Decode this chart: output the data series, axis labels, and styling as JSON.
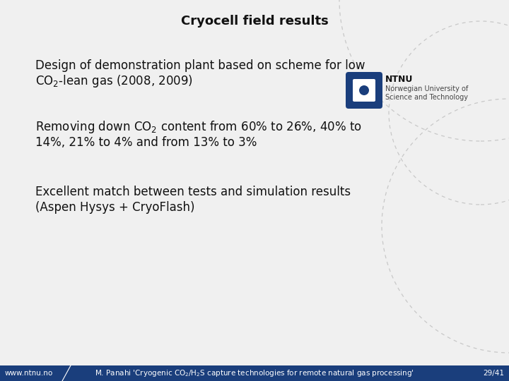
{
  "title": "Cryocell field results",
  "b1l1": "Design of demonstration plant based on scheme for low",
  "b1l2": "CO₂-lean gas (2008, 2009)",
  "b2l1": "Removing down CO₂ content from 60% to 26%, 40% to",
  "b2l2": "14%, 21% to 4% and from 13% to 3%",
  "b3l1": "Excellent match between tests and simulation results",
  "b3l2": "(Aspen Hysys + CryoFlash)",
  "footer_left": "www.ntnu.no",
  "footer_center": "M. Panahi ‘Cryogenic CO₂/H₂S capture technologies for remote natural gas processing’",
  "footer_right": "29/41",
  "footer_bg": "#1a3e7c",
  "footer_text_color": "#ffffff",
  "background_color": "#f0f0f0",
  "title_fontsize": 13,
  "body_fontsize": 12,
  "footer_fontsize": 7.5,
  "ntnu_box_color": "#1a3e7c",
  "circle_color": "#c8c8c8",
  "text_color": "#111111"
}
